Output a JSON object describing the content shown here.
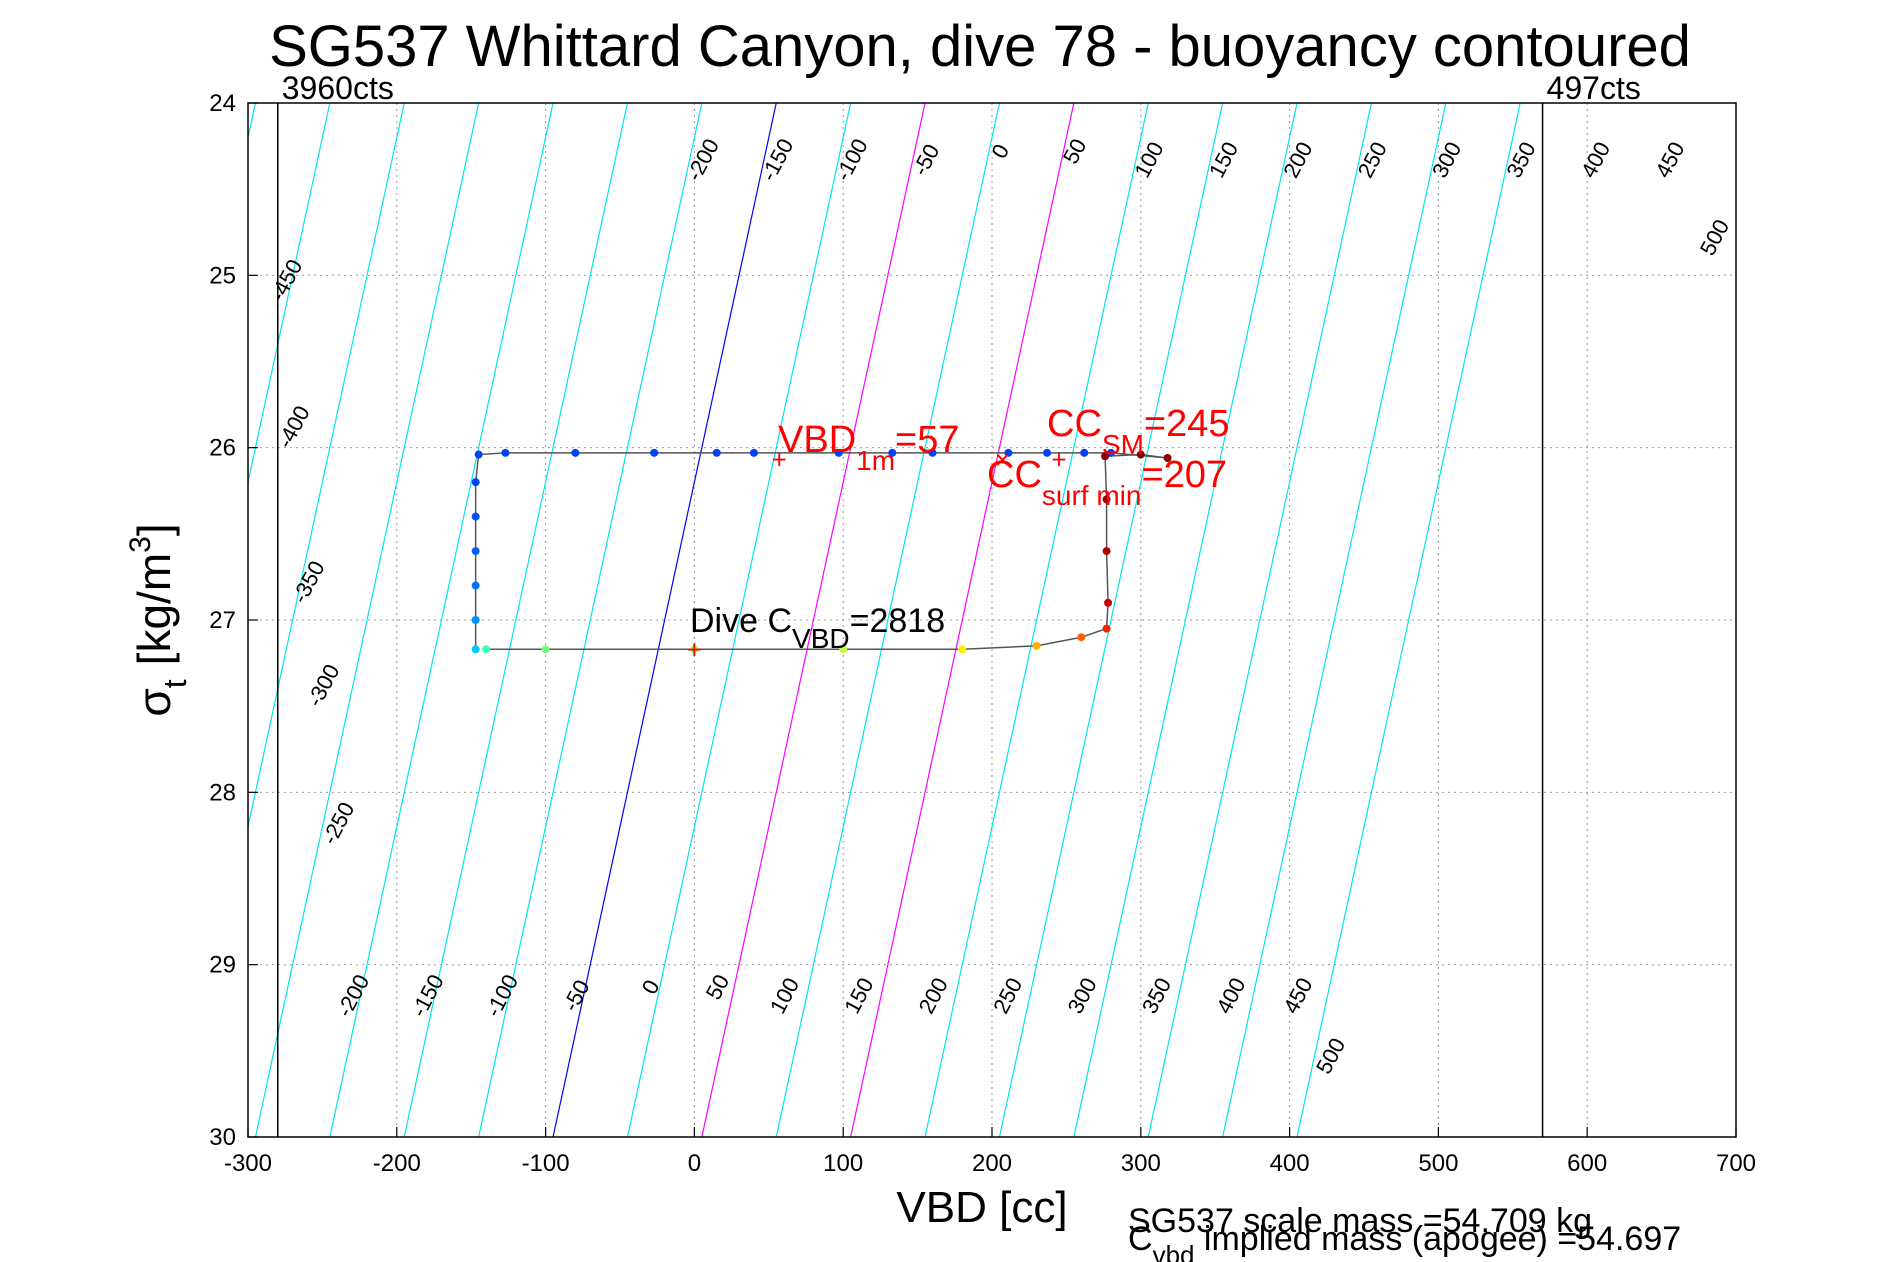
{
  "chart_data": {
    "type": "scatter",
    "title": "SG537 Whittard Canyon, dive 78 - buoyancy contoured",
    "xlabel": "VBD [cc]",
    "ylabel_main": "σ",
    "ylabel_sub": "t",
    "ylabel_unit": "[kg/m",
    "ylabel_sup": "3",
    "ylabel_close": "]",
    "xlim": [
      -300,
      700
    ],
    "ylim": [
      30,
      24
    ],
    "xticks": [
      -300,
      -200,
      -100,
      0,
      100,
      200,
      300,
      400,
      500,
      600,
      700
    ],
    "yticks": [
      24,
      25,
      26,
      27,
      28,
      29,
      30
    ],
    "grid": true,
    "limit_lines": [
      {
        "label": "3960cts",
        "vbd": -280
      },
      {
        "label": "497cts",
        "vbd": 570
      }
    ],
    "contours": {
      "levels": [
        -450,
        -400,
        -350,
        -300,
        -250,
        -200,
        -150,
        -100,
        -50,
        0,
        50,
        100,
        150,
        200,
        250,
        300,
        350,
        400,
        450,
        500
      ],
      "color": "#00e5ee",
      "zero_color": "#0000ff",
      "highlight_color": "#ff00ff",
      "highlight_levels": [
        100,
        200
      ],
      "vbd_at_sigma30": [
        -545,
        -495,
        -445,
        -395,
        -345,
        -295,
        -245,
        -195,
        -145,
        -95,
        -45,
        5,
        55,
        105,
        155,
        205,
        255,
        305,
        355,
        405
      ],
      "top_labels": [
        "-200",
        "-150",
        "-100",
        "-50",
        "0",
        "50",
        "100",
        "150",
        "200",
        "250",
        "300",
        "350",
        "400",
        "450",
        "500"
      ],
      "top_label_sigma": [
        24.35,
        24.35,
        24.35,
        24.35,
        24.3,
        24.3,
        24.35,
        24.35,
        24.35,
        24.35,
        24.35,
        24.35,
        24.35,
        24.35,
        24.8
      ],
      "top_label_vbd": [
        10,
        60,
        110,
        160,
        210,
        260,
        310,
        360,
        410,
        460,
        510,
        560,
        610,
        660,
        690
      ],
      "left_labels": [
        "-450",
        "-400",
        "-350",
        "-300",
        "-250",
        "-200",
        "-150",
        "-100",
        "-50",
        "0",
        "50",
        "100",
        "150",
        "200",
        "250",
        "300",
        "350",
        "400",
        "450",
        "500"
      ],
      "left_label_vbd": [
        -270,
        -265,
        -255,
        -245,
        -235,
        -225,
        -175,
        -125,
        -75,
        -25,
        20,
        65,
        115,
        165,
        215,
        265,
        315,
        365,
        410,
        432
      ],
      "left_label_sigma": [
        25.05,
        25.9,
        26.8,
        27.4,
        28.2,
        29.2,
        29.2,
        29.2,
        29.2,
        29.15,
        29.15,
        29.2,
        29.2,
        29.2,
        29.2,
        29.2,
        29.2,
        29.2,
        29.2,
        29.55
      ]
    },
    "series": [
      {
        "points": [
          {
            "vbd": -147,
            "sigma": 27.17,
            "color": "#00c8ff"
          },
          {
            "vbd": -147,
            "sigma": 27.0,
            "color": "#0090ff"
          },
          {
            "vbd": -147,
            "sigma": 26.8,
            "color": "#0070ff"
          },
          {
            "vbd": -147,
            "sigma": 26.6,
            "color": "#0060ff"
          },
          {
            "vbd": -147,
            "sigma": 26.4,
            "color": "#0050ff"
          },
          {
            "vbd": -147,
            "sigma": 26.2,
            "color": "#0040ff"
          },
          {
            "vbd": -145,
            "sigma": 26.04,
            "color": "#0040ff"
          },
          {
            "vbd": -127,
            "sigma": 26.03,
            "color": "#0040ff"
          },
          {
            "vbd": -80,
            "sigma": 26.03,
            "color": "#0040ff"
          },
          {
            "vbd": -27,
            "sigma": 26.03,
            "color": "#0040ff"
          },
          {
            "vbd": 15,
            "sigma": 26.03,
            "color": "#0040ff"
          },
          {
            "vbd": 40,
            "sigma": 26.03,
            "color": "#0040ff"
          },
          {
            "vbd": 97,
            "sigma": 26.03,
            "color": "#0040ff"
          },
          {
            "vbd": 133,
            "sigma": 26.03,
            "color": "#0040ff"
          },
          {
            "vbd": 160,
            "sigma": 26.03,
            "color": "#0040ff"
          },
          {
            "vbd": 211,
            "sigma": 26.03,
            "color": "#0040ff"
          },
          {
            "vbd": 237,
            "sigma": 26.03,
            "color": "#0040ff"
          },
          {
            "vbd": 262,
            "sigma": 26.03,
            "color": "#0040ff"
          },
          {
            "vbd": 280,
            "sigma": 26.03,
            "color": "#0040ff"
          },
          {
            "vbd": 318,
            "sigma": 26.06,
            "color": "#8b0000"
          },
          {
            "vbd": 300,
            "sigma": 26.04,
            "color": "#8b0000"
          },
          {
            "vbd": 276,
            "sigma": 26.05,
            "color": "#8b0000"
          },
          {
            "vbd": 277,
            "sigma": 26.3,
            "color": "#9b0000"
          },
          {
            "vbd": 277,
            "sigma": 26.6,
            "color": "#b00000"
          },
          {
            "vbd": 278,
            "sigma": 26.9,
            "color": "#d00000"
          },
          {
            "vbd": 277,
            "sigma": 27.05,
            "color": "#ff2000"
          },
          {
            "vbd": 260,
            "sigma": 27.1,
            "color": "#ff6000"
          },
          {
            "vbd": 230,
            "sigma": 27.15,
            "color": "#ffb000"
          },
          {
            "vbd": 180,
            "sigma": 27.17,
            "color": "#ffee00"
          },
          {
            "vbd": 100,
            "sigma": 27.17,
            "color": "#c0ff40"
          },
          {
            "vbd": 0,
            "sigma": 27.17,
            "color": "#90ff60"
          },
          {
            "vbd": -100,
            "sigma": 27.17,
            "color": "#70ff80"
          },
          {
            "vbd": -140,
            "sigma": 27.17,
            "color": "#40ffb0"
          }
        ]
      }
    ],
    "markers": [
      {
        "vbd": 57,
        "sigma": 26.07,
        "symbol": "+",
        "color": "#ff0000"
      },
      {
        "vbd": 207,
        "sigma": 26.07,
        "symbol": "×",
        "color": "#ff0000"
      },
      {
        "vbd": 245,
        "sigma": 26.07,
        "symbol": "+",
        "color": "#ff0000"
      },
      {
        "vbd": 0,
        "sigma": 27.17,
        "symbol": "+",
        "color": "#ff0000"
      }
    ],
    "annotations": {
      "vbd1m_main": "VBD",
      "vbd1m_sub": "1m",
      "vbd1m_value": "=57",
      "ccsm_main": "CC",
      "ccsm_sub": "SM",
      "ccsm_value": "=245",
      "ccsurf_main": "CC",
      "ccsurf_sub": "surf min",
      "ccsurf_value": "=207",
      "cvbd_main": "Dive C",
      "cvbd_sub": "VBD",
      "cvbd_value": "=2818"
    },
    "footer": {
      "line1": "SG537 scale mass =54.709 kg",
      "line2_main": "C",
      "line2_sub": "vbd",
      "line2_text": " implied mass (apogee) =54.697"
    }
  }
}
